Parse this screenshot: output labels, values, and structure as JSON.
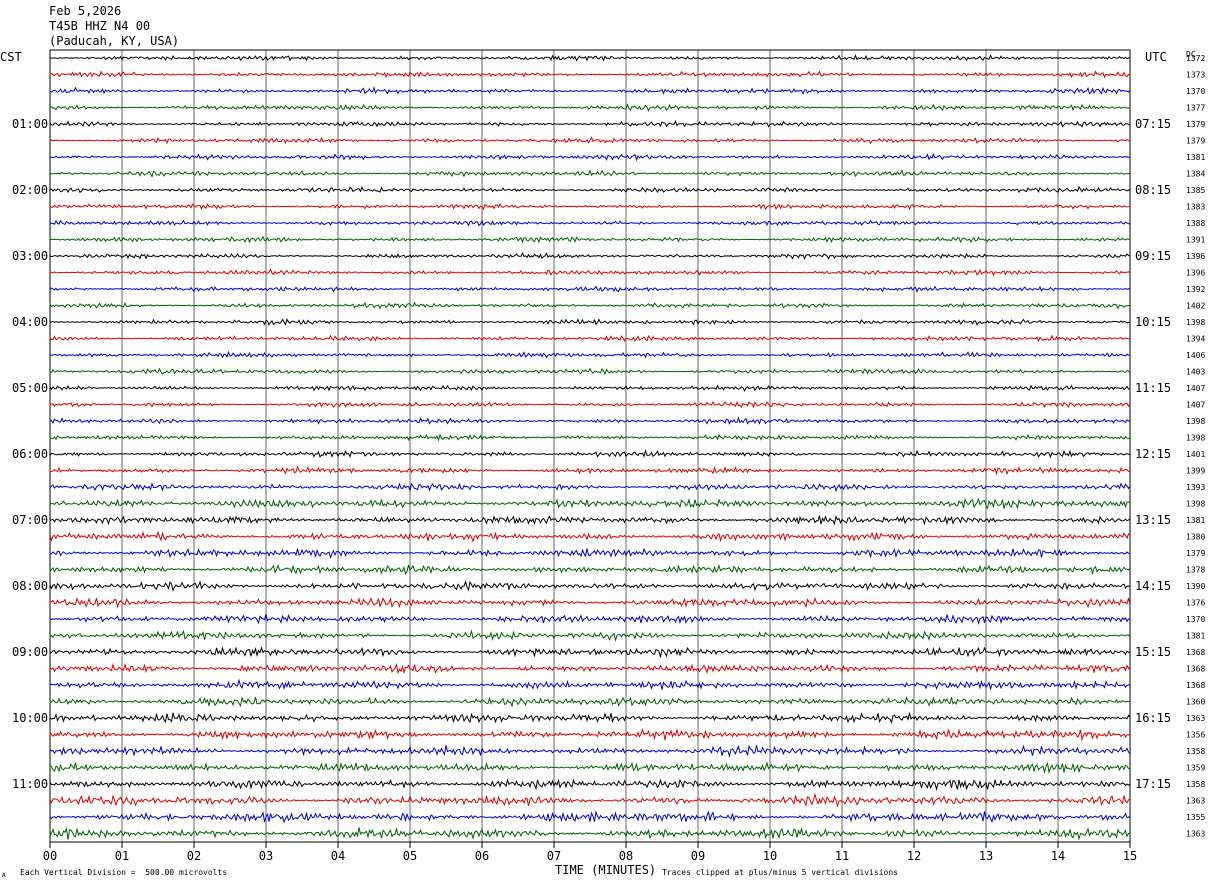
{
  "header": {
    "date": "Feb 5,2026",
    "station": "T45B HHZ N4 00",
    "location": "(Paducah, KY, USA)"
  },
  "labels": {
    "left_tz": "CST",
    "right_tz": "UTC",
    "dc": "DC",
    "xlabel": "TIME (MINUTES)",
    "scale_note": "Each Vertical Division =  500.00 microvolts",
    "clip_note": "Traces clipped at plus/minus 5 vertical divisions",
    "corner_mark": "A"
  },
  "chart_data": {
    "type": "line",
    "xlabel": "TIME (MINUTES)",
    "xlim": [
      0,
      15
    ],
    "x_ticks": [
      "00",
      "01",
      "02",
      "03",
      "04",
      "05",
      "06",
      "07",
      "08",
      "09",
      "10",
      "11",
      "12",
      "13",
      "14",
      "15"
    ],
    "trace_colors": [
      "#000000",
      "#e00000",
      "#0000d0",
      "#006000"
    ],
    "rows_count_note": "48 traces, 15-minute rows",
    "left_time_labels": [
      "01:00",
      "02:00",
      "03:00",
      "04:00",
      "05:00",
      "06:00",
      "07:00",
      "08:00",
      "09:00",
      "10:00",
      "11:00"
    ],
    "right_time_labels": [
      "07:15",
      "08:15",
      "09:15",
      "10:15",
      "11:15",
      "12:15",
      "13:15",
      "14:15",
      "15:15",
      "16:15",
      "17:15"
    ],
    "dc_offsets": [
      "1372",
      "1373",
      "1370",
      "1377",
      "1379",
      "1379",
      "1381",
      "1384",
      "1385",
      "1383",
      "1388",
      "1391",
      "1396",
      "1396",
      "1392",
      "1402",
      "1398",
      "1394",
      "1406",
      "1403",
      "1407",
      "1407",
      "1398",
      "1398",
      "1401",
      "1399",
      "1393",
      "1398",
      "1381",
      "1380",
      "1379",
      "1378",
      "1390",
      "1376",
      "1370",
      "1381",
      "1368",
      "1368",
      "1368",
      "1360",
      "1363",
      "1356",
      "1358",
      "1359",
      "1358",
      "1363",
      "1355",
      "1363"
    ],
    "row_amplitude": [
      1,
      1,
      1,
      1,
      1,
      1,
      1,
      1,
      1,
      1,
      1,
      1,
      1,
      1,
      1,
      1,
      1,
      1,
      1,
      1,
      1,
      1,
      1,
      1,
      1.2,
      1.2,
      1.3,
      1.8,
      1.6,
      1.6,
      1.7,
      1.6,
      1.6,
      1.6,
      1.6,
      1.6,
      1.7,
      1.7,
      1.7,
      1.7,
      1.8,
      1.8,
      1.8,
      1.8,
      1.9,
      2.0,
      2.0,
      2.0
    ]
  }
}
